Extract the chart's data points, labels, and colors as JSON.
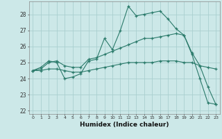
{
  "xlabel": "Humidex (Indice chaleur)",
  "bg_color": "#cce8e8",
  "grid_color": "#aacfcf",
  "line_color": "#2a7a6a",
  "xlim": [
    -0.5,
    23.5
  ],
  "ylim": [
    21.8,
    28.8
  ],
  "yticks": [
    22,
    23,
    24,
    25,
    26,
    27,
    28
  ],
  "xticks": [
    0,
    1,
    2,
    3,
    4,
    5,
    6,
    7,
    8,
    9,
    10,
    11,
    12,
    13,
    14,
    15,
    16,
    17,
    18,
    19,
    20,
    21,
    22,
    23
  ],
  "line1_x": [
    0,
    1,
    2,
    3,
    4,
    5,
    6,
    7,
    8,
    9,
    10,
    11,
    12,
    13,
    14,
    15,
    16,
    17,
    18,
    19,
    20,
    21,
    22,
    23
  ],
  "line1_y": [
    24.5,
    24.7,
    25.1,
    25.0,
    24.0,
    24.1,
    24.3,
    25.1,
    25.2,
    26.5,
    25.8,
    27.0,
    28.5,
    27.9,
    28.0,
    28.1,
    28.2,
    27.7,
    27.1,
    26.7,
    25.5,
    24.0,
    22.5,
    22.4
  ],
  "line2_x": [
    0,
    1,
    2,
    3,
    4,
    5,
    6,
    7,
    8,
    9,
    10,
    11,
    12,
    13,
    14,
    15,
    16,
    17,
    18,
    19,
    20,
    21,
    22,
    23
  ],
  "line2_y": [
    24.5,
    24.6,
    25.0,
    25.1,
    24.8,
    24.7,
    24.7,
    25.2,
    25.3,
    25.5,
    25.7,
    25.9,
    26.1,
    26.3,
    26.5,
    26.5,
    26.6,
    26.7,
    26.8,
    26.7,
    25.6,
    24.8,
    24.7,
    24.6
  ],
  "line3_x": [
    0,
    1,
    2,
    3,
    4,
    5,
    6,
    7,
    8,
    9,
    10,
    11,
    12,
    13,
    14,
    15,
    16,
    17,
    18,
    19,
    20,
    21,
    22,
    23
  ],
  "line3_y": [
    24.5,
    24.5,
    24.6,
    24.6,
    24.5,
    24.4,
    24.4,
    24.5,
    24.6,
    24.7,
    24.8,
    24.9,
    25.0,
    25.0,
    25.0,
    25.0,
    25.1,
    25.1,
    25.1,
    25.0,
    25.0,
    24.8,
    23.5,
    22.4
  ]
}
